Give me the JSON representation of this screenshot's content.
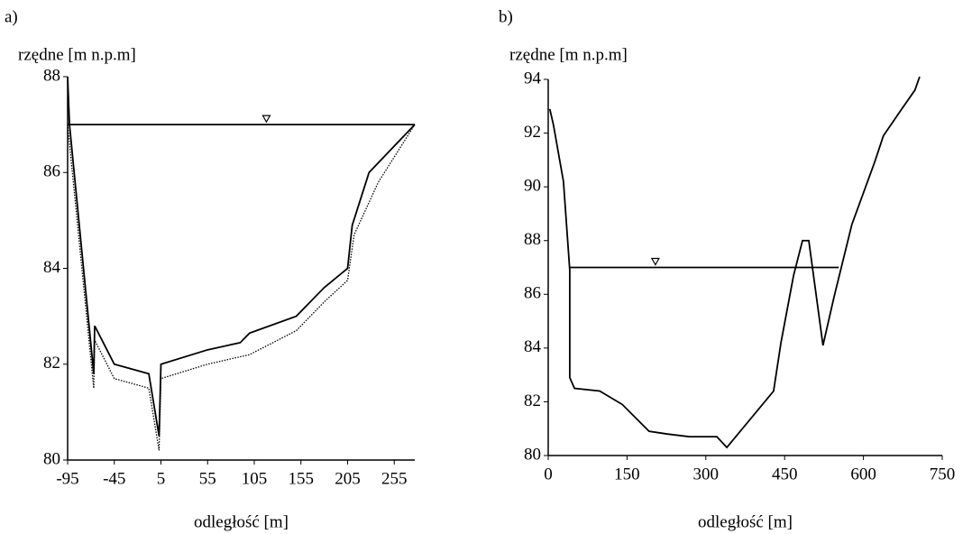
{
  "chart_data": [
    {
      "type": "line",
      "panel_label": "a)",
      "y_label": "rzędne [m n.p.m]",
      "x_label": "odległość [m]",
      "xlim": [
        -95,
        277
      ],
      "ylim": [
        80,
        88
      ],
      "xticks": [
        -95,
        -45,
        5,
        55,
        105,
        155,
        205,
        255
      ],
      "yticks": [
        80,
        82,
        84,
        86,
        88
      ],
      "series": [
        {
          "color": "#000000",
          "style": "solid",
          "x": [
            -95,
            -93,
            -67,
            -66,
            -45,
            -8,
            3,
            5,
            55,
            90,
            100,
            150,
            180,
            205,
            210,
            228,
            277
          ],
          "values": [
            88,
            87,
            81.8,
            82.8,
            82.0,
            81.8,
            80.5,
            82.0,
            82.3,
            82.45,
            82.65,
            83.0,
            83.6,
            84.0,
            84.9,
            86.0,
            87.0
          ]
        },
        {
          "color": "#000000",
          "style": "dotted",
          "x": [
            -95,
            -67,
            -66,
            -45,
            -8,
            3,
            5,
            55,
            100,
            150,
            180,
            205,
            212,
            238,
            277
          ],
          "values": [
            87.0,
            81.5,
            82.5,
            81.7,
            81.5,
            80.2,
            81.7,
            82.0,
            82.2,
            82.7,
            83.3,
            83.75,
            84.7,
            85.8,
            87.0
          ]
        },
        {
          "color": "#000000",
          "style": "solid",
          "x": [
            -95,
            277
          ],
          "values": [
            87,
            87
          ]
        },
        {
          "color": "#000000",
          "style": "triangle",
          "x": [
            118
          ],
          "values": [
            87
          ]
        }
      ]
    },
    {
      "type": "line",
      "panel_label": "b)",
      "y_label": "rzędne [m n.p.m]",
      "x_label": "odległość [m]",
      "xlim": [
        0,
        750
      ],
      "ylim": [
        80,
        94
      ],
      "xticks": [
        0,
        150,
        300,
        450,
        600,
        750
      ],
      "yticks": [
        80,
        82,
        84,
        86,
        88,
        90,
        92,
        94
      ],
      "series": [
        {
          "color": "#000000",
          "style": "solid",
          "x": [
            3,
            10,
            29,
            41,
            41,
            50,
            98,
            141,
            192,
            227,
            269,
            321,
            340,
            429,
            443,
            467,
            484,
            496,
            523,
            544,
            578,
            621,
            638,
            673,
            698,
            707
          ],
          "values": [
            92.9,
            92.3,
            90.2,
            86.9,
            82.9,
            82.5,
            82.4,
            81.9,
            80.9,
            80.8,
            80.7,
            80.7,
            80.3,
            82.4,
            84.2,
            86.7,
            88.0,
            88.0,
            84.1,
            85.9,
            88.6,
            90.9,
            91.9,
            92.9,
            93.6,
            94.1
          ]
        },
        {
          "color": "#000000",
          "style": "solid",
          "x": [
            41,
            553
          ],
          "values": [
            87,
            87
          ]
        },
        {
          "color": "#000000",
          "style": "triangle",
          "x": [
            204
          ],
          "values": [
            87
          ]
        }
      ]
    }
  ]
}
